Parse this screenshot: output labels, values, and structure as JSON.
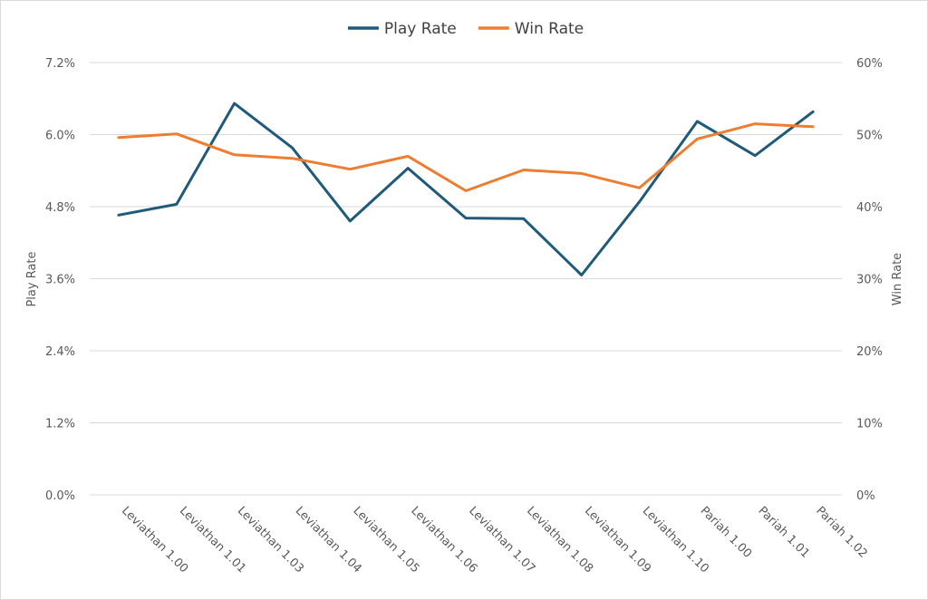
{
  "chart_data": {
    "type": "line",
    "categories": [
      "Leviathan 1.00",
      "Leviathan 1.01",
      "Leviathan 1.03",
      "Leviathan 1.04",
      "Leviathan 1.05",
      "Leviathan 1.06",
      "Leviathan 1.07",
      "Leviathan 1.08",
      "Leviathan 1.09",
      "Leviathan 1.10",
      "Pariah 1.00",
      "Pariah 1.01",
      "Pariah 1.02"
    ],
    "y_left": {
      "label": "Play Rate",
      "min": 0,
      "max": 7.2,
      "step": 1.2,
      "tick_labels": [
        "0.0%",
        "1.2%",
        "2.4%",
        "3.6%",
        "4.8%",
        "6.0%",
        "7.2%"
      ]
    },
    "y_right": {
      "label": "Win Rate",
      "min": 0,
      "max": 60,
      "step": 10,
      "tick_labels": [
        "0%",
        "10%",
        "20%",
        "30%",
        "40%",
        "50%",
        "60%"
      ]
    },
    "series": [
      {
        "name": "Play Rate",
        "axis": "left",
        "color": "#1f5a7a",
        "values": [
          4.66,
          4.84,
          6.52,
          5.78,
          4.56,
          5.44,
          4.61,
          4.6,
          3.66,
          4.88,
          6.22,
          5.65,
          6.38
        ]
      },
      {
        "name": "Win Rate",
        "axis": "right",
        "color": "#ed7d31",
        "values": [
          49.6,
          50.1,
          47.2,
          46.7,
          45.2,
          47.0,
          42.2,
          45.1,
          44.6,
          42.6,
          49.4,
          51.5,
          51.1
        ]
      }
    ],
    "legend_position": "top-center",
    "grid": true
  }
}
